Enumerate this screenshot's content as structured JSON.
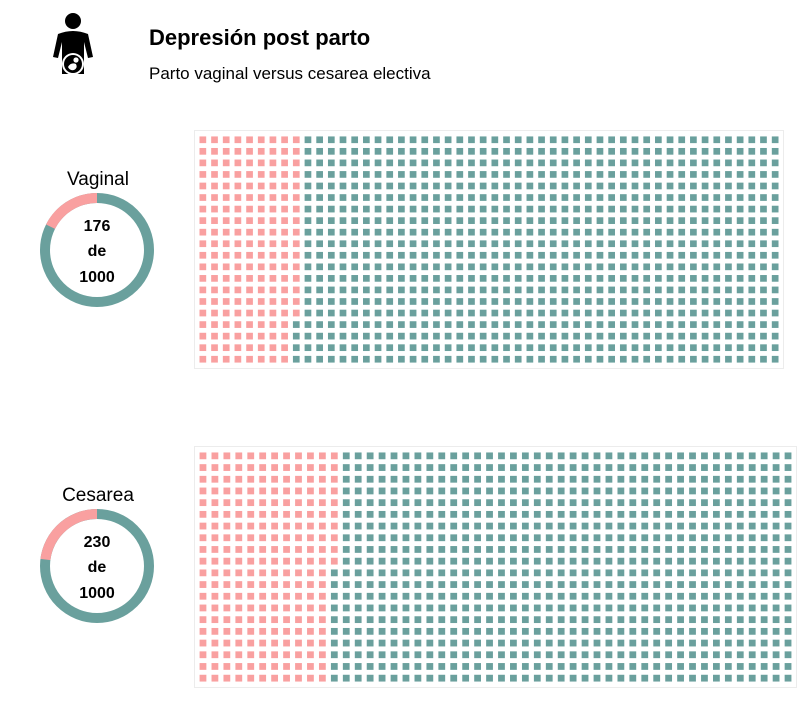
{
  "header": {
    "icon": "pregnant-woman-icon",
    "title": "Depresión post parto",
    "subtitle": "Parto vaginal versus cesarea electiva"
  },
  "colors": {
    "affected": "#f9a0a0",
    "unaffected": "#6aa09d",
    "icon": "#000000"
  },
  "chart_data": [
    {
      "type": "waffle",
      "label": "Vaginal",
      "value": 176,
      "total": 1000,
      "donut_text": [
        "176",
        "de",
        "1000"
      ],
      "grid_rows": 20,
      "grid_cols": 50
    },
    {
      "type": "waffle",
      "label": "Cesarea",
      "value": 230,
      "total": 1000,
      "donut_text": [
        "230",
        "de",
        "1000"
      ],
      "grid_rows": 20,
      "grid_cols": 50
    }
  ]
}
